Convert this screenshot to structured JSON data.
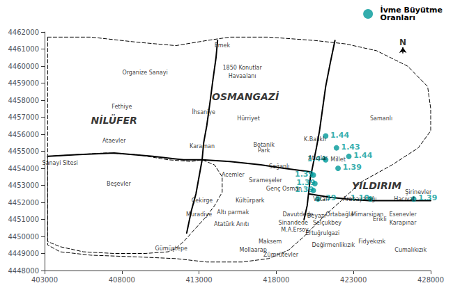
{
  "chart_data": {
    "type": "scatter",
    "xlim": [
      403000,
      428000
    ],
    "ylim": [
      4448000,
      4462000
    ],
    "xticks": [
      403000,
      408000,
      413000,
      418000,
      423000,
      428000
    ],
    "yticks": [
      4448000,
      4449000,
      4450000,
      4451000,
      4452000,
      4453000,
      4454000,
      4455000,
      4456000,
      4457000,
      4458000,
      4459000,
      4460000,
      4461000,
      4462000
    ],
    "grid": false,
    "legend": "top-right",
    "series": [
      {
        "type": "line",
        "line_style": "dashed",
        "color": "black",
        "x": [
          403200,
          406000,
          409000,
          411500,
          413500,
          415000,
          417500,
          420500,
          422500,
          424500,
          426500,
          427800,
          428000,
          428000,
          427200,
          425500,
          423500,
          422200,
          421000,
          419800,
          418800,
          417500,
          415800,
          413500,
          411500,
          409000,
          406000,
          404000,
          403200,
          403200
        ],
        "values": [
          4461700,
          4461700,
          4461400,
          4461200,
          4461500,
          4461700,
          4461700,
          4461500,
          4461300,
          4460900,
          4460000,
          4458800,
          4457500,
          4456200,
          4455200,
          4454200,
          4453200,
          4452100,
          4451100,
          4450000,
          4449200,
          4448700,
          4448500,
          4448500,
          4448700,
          4448800,
          4448900,
          4449100,
          4449500,
          4461700
        ]
      },
      {
        "type": "line",
        "line_style": "dashed",
        "color": "black",
        "x": [
          403200,
          405000,
          407000,
          409000,
          411000,
          412500,
          413200,
          414000,
          414500,
          414500,
          414000,
          413500,
          413000,
          412500,
          412000,
          411500,
          411000,
          409500,
          407500,
          405500,
          404000,
          403200,
          403200
        ],
        "values": [
          4454700,
          4454800,
          4454900,
          4454800,
          4454500,
          4454400,
          4454500,
          4454200,
          4453500,
          4452600,
          4451800,
          4451200,
          4450700,
          4450200,
          4449700,
          4449300,
          4449100,
          4449000,
          4449000,
          4449100,
          4449400,
          4449700,
          4454700
        ]
      },
      {
        "type": "line",
        "line_style": "solid",
        "color": "black",
        "x": [
          414200,
          414100,
          413900,
          413700,
          413500,
          413300,
          413200,
          413000,
          412800,
          412500,
          412200
        ],
        "values": [
          4461500,
          4460500,
          4459200,
          4457800,
          4456500,
          4455500,
          4454500,
          4453500,
          4452500,
          4451500,
          4450200
        ]
      },
      {
        "type": "line",
        "line_style": "solid",
        "color": "black",
        "x": [
          421800,
          421500,
          421200,
          421000,
          420800,
          420600,
          420400,
          420200,
          420100,
          420000,
          419800
        ],
        "values": [
          4461500,
          4460200,
          4458800,
          4457500,
          4456200,
          4455200,
          4454300,
          4453400,
          4452600,
          4451800,
          4451000
        ]
      },
      {
        "type": "line",
        "line_style": "solid",
        "color": "black",
        "x": [
          403200,
          405000,
          407500,
          410000,
          412000,
          413200,
          415000,
          417000,
          418500,
          420200
        ],
        "values": [
          4454700,
          4454800,
          4454900,
          4454700,
          4454500,
          4454500,
          4454400,
          4454200,
          4454000,
          4453800
        ]
      },
      {
        "type": "line",
        "line_style": "solid",
        "color": "black",
        "x": [
          420100,
          421500,
          422500,
          424000,
          426000,
          428000
        ],
        "values": [
          4452500,
          4452300,
          4452200,
          4452100,
          4452100,
          4452100
        ]
      },
      {
        "type": "scatter",
        "name": "İvme Büyütme\nOranları",
        "color": "#009999",
        "x": [
          421200,
          421900,
          422700,
          421200,
          422000,
          420400,
          420500,
          420400,
          420700,
          424100,
          426900
        ],
        "values": [
          4455900,
          4455200,
          4454700,
          4454500,
          4454000,
          4453600,
          4453100,
          4452700,
          4452200,
          4452200,
          4452200
        ]
      }
    ],
    "annotations": [
      {
        "kind": "value",
        "text": "1.44",
        "x": 421500,
        "y": 4455950,
        "color": "#009999"
      },
      {
        "kind": "value",
        "text": "1.43",
        "x": 422200,
        "y": 4455250,
        "color": "#009999"
      },
      {
        "kind": "value",
        "text": "1.44",
        "x": 423000,
        "y": 4454750,
        "color": "#009999"
      },
      {
        "kind": "value",
        "text": "1.44",
        "x": 420000,
        "y": 4454550,
        "color": "#009999"
      },
      {
        "kind": "value",
        "text": "1.39",
        "x": 422300,
        "y": 4454050,
        "color": "#009999"
      },
      {
        "kind": "value",
        "text": "1.39",
        "x": 419200,
        "y": 4453650,
        "color": "#009999"
      },
      {
        "kind": "value",
        "text": "1.39",
        "x": 419300,
        "y": 4453150,
        "color": "#009999"
      },
      {
        "kind": "value",
        "text": "1.39",
        "x": 419200,
        "y": 4452750,
        "color": "#009999"
      },
      {
        "kind": "value",
        "text": ".39",
        "x": 421000,
        "y": 4452250,
        "color": "#009999"
      },
      {
        "kind": "value",
        "text": "1.10",
        "x": 422800,
        "y": 4452250,
        "color": "#009999"
      },
      {
        "kind": "value",
        "text": "1.39",
        "x": 427200,
        "y": 4452250,
        "color": "#009999"
      },
      {
        "kind": "district",
        "text": "NİLÜFER",
        "x": 407500,
        "y": 4456800
      },
      {
        "kind": "district",
        "text": "OSMANGAZİ",
        "x": 416000,
        "y": 4458200
      },
      {
        "kind": "district",
        "text": "YILDIRIM",
        "x": 424500,
        "y": 4453000
      },
      {
        "kind": "neighborhood",
        "text": "Emek",
        "x": 414500,
        "y": 4461200
      },
      {
        "kind": "neighborhood",
        "text": "Organize Sanayi",
        "x": 409500,
        "y": 4459600
      },
      {
        "kind": "neighborhood",
        "text": "1850 Konutlar",
        "x": 415800,
        "y": 4459900
      },
      {
        "kind": "neighborhood",
        "text": "Havaalanı",
        "x": 415800,
        "y": 4459400
      },
      {
        "kind": "neighborhood",
        "text": "Fethiye",
        "x": 408000,
        "y": 4457600
      },
      {
        "kind": "neighborhood",
        "text": "İhsaniye",
        "x": 413300,
        "y": 4457300
      },
      {
        "kind": "neighborhood",
        "text": "Hürriyet",
        "x": 416200,
        "y": 4456900
      },
      {
        "kind": "neighborhood",
        "text": "Samanlı",
        "x": 424800,
        "y": 4456900
      },
      {
        "kind": "neighborhood",
        "text": "K.Balıklı",
        "x": 420500,
        "y": 4455700
      },
      {
        "kind": "neighborhood",
        "text": "Ataevler",
        "x": 407500,
        "y": 4455600
      },
      {
        "kind": "neighborhood",
        "text": "Karaman",
        "x": 413200,
        "y": 4455300
      },
      {
        "kind": "neighborhood",
        "text": "Botanik\nPark",
        "x": 417200,
        "y": 4455200
      },
      {
        "kind": "neighborhood",
        "text": "Atıcılar",
        "x": 420700,
        "y": 4454600
      },
      {
        "kind": "neighborhood",
        "text": "Millet",
        "x": 422000,
        "y": 4454500
      },
      {
        "kind": "neighborhood",
        "text": "Sanayi Sitesi",
        "x": 404000,
        "y": 4454300
      },
      {
        "kind": "neighborhood",
        "text": "Soğanlı",
        "x": 418200,
        "y": 4454100
      },
      {
        "kind": "neighborhood",
        "text": "Acemler",
        "x": 415200,
        "y": 4453600
      },
      {
        "kind": "neighborhood",
        "text": "Sırameşeler",
        "x": 417300,
        "y": 4453300
      },
      {
        "kind": "neighborhood",
        "text": "Beşevler",
        "x": 407800,
        "y": 4453100
      },
      {
        "kind": "neighborhood",
        "text": "Genç Osman",
        "x": 418500,
        "y": 4452800
      },
      {
        "kind": "neighborhood",
        "text": "Şirinevler",
        "x": 427200,
        "y": 4452600
      },
      {
        "kind": "neighborhood",
        "text": "Çekirge",
        "x": 413200,
        "y": 4452100
      },
      {
        "kind": "neighborhood",
        "text": "Kültürpark",
        "x": 416300,
        "y": 4452100
      },
      {
        "kind": "neighborhood",
        "text": "Vatan",
        "x": 420900,
        "y": 4452200
      },
      {
        "kind": "neighborhood",
        "text": "Arabayatağı",
        "x": 423400,
        "y": 4452200
      },
      {
        "kind": "neighborhood",
        "text": "Hacıvat",
        "x": 426300,
        "y": 4452200
      },
      {
        "kind": "neighborhood",
        "text": "Altı parmak",
        "x": 415200,
        "y": 4451400
      },
      {
        "kind": "neighborhood",
        "text": "Muradiye",
        "x": 413000,
        "y": 4451300
      },
      {
        "kind": "neighborhood",
        "text": "Davutdede",
        "x": 419400,
        "y": 4451300
      },
      {
        "kind": "neighborhood",
        "text": "Beyazı",
        "x": 420600,
        "y": 4451200
      },
      {
        "kind": "neighborhood",
        "text": "Ortabağla",
        "x": 422100,
        "y": 4451300
      },
      {
        "kind": "neighborhood",
        "text": "Mimarsinan",
        "x": 423900,
        "y": 4451300
      },
      {
        "kind": "neighborhood",
        "text": "Esenevler",
        "x": 426200,
        "y": 4451300
      },
      {
        "kind": "neighborhood",
        "text": "Atatürk Anıtı",
        "x": 415100,
        "y": 4450700
      },
      {
        "kind": "neighborhood",
        "text": "Sinandede",
        "x": 419100,
        "y": 4450800
      },
      {
        "kind": "neighborhood",
        "text": "Selçukbey",
        "x": 421300,
        "y": 4450800
      },
      {
        "kind": "neighborhood",
        "text": "Erikli",
        "x": 424700,
        "y": 4451000
      },
      {
        "kind": "neighborhood",
        "text": "Karapınar",
        "x": 426200,
        "y": 4450800
      },
      {
        "kind": "neighborhood",
        "text": "M.A.Ersoy",
        "x": 419200,
        "y": 4450400
      },
      {
        "kind": "neighborhood",
        "text": "Ertuğrulgazi",
        "x": 421000,
        "y": 4450200
      },
      {
        "kind": "neighborhood",
        "text": "Gümüştepe",
        "x": 411200,
        "y": 4449300
      },
      {
        "kind": "neighborhood",
        "text": "Maksem",
        "x": 417600,
        "y": 4449700
      },
      {
        "kind": "neighborhood",
        "text": "Değirmenlikızık",
        "x": 421700,
        "y": 4449500
      },
      {
        "kind": "neighborhood",
        "text": "Fidyekızık",
        "x": 424200,
        "y": 4449700
      },
      {
        "kind": "neighborhood",
        "text": "Mollaarap",
        "x": 416500,
        "y": 4449200
      },
      {
        "kind": "neighborhood",
        "text": "Zümrütevler",
        "x": 418300,
        "y": 4448900
      },
      {
        "kind": "neighborhood",
        "text": "Cumalıkızık",
        "x": 426700,
        "y": 4449200
      },
      {
        "kind": "north",
        "text": "N",
        "x": 426200,
        "y": 4461130,
        "arrow_from": [
          426200,
          4460740
        ],
        "arrow_to": [
          426200,
          4461100
        ]
      }
    ]
  }
}
